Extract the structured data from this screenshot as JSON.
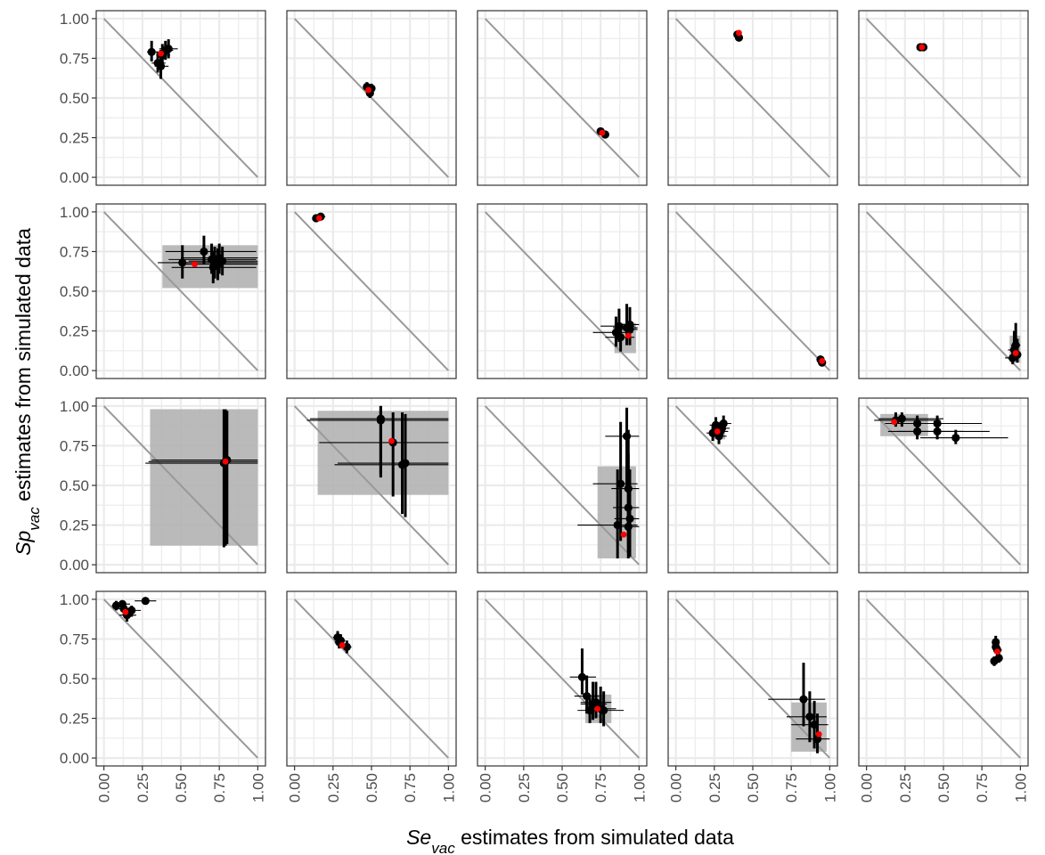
{
  "chart_data": {
    "type": "scatter",
    "layout": {
      "rows": 4,
      "cols": 5
    },
    "xlabel": {
      "symbol": "Se",
      "subscript": "vac",
      "text": " estimates from simulated data"
    },
    "ylabel": {
      "symbol": "Sp",
      "subscript": "vac",
      "text": " estimates from simulated data"
    },
    "xlim": [
      0,
      1
    ],
    "ylim": [
      0,
      1
    ],
    "x_ticks": [
      "0.00",
      "0.25",
      "0.50",
      "0.75",
      "1.00"
    ],
    "y_ticks": [
      "0.00",
      "0.25",
      "0.50",
      "0.75",
      "1.00"
    ],
    "reference_line": {
      "from": [
        0,
        1
      ],
      "to": [
        1,
        0
      ],
      "color": "#999999"
    },
    "colors": {
      "point": "#000000",
      "true_value": "#ff0000",
      "ci_rect": "#b3b3b3",
      "grid": "#ebebeb",
      "panel_border": "#333333"
    },
    "panels": [
      {
        "truth": [
          0.37,
          0.78
        ],
        "rect": null,
        "points": [
          [
            0.31,
            0.79,
            0.28,
            0.4,
            0.73,
            0.86
          ],
          [
            0.35,
            0.72,
            0.31,
            0.4,
            0.66,
            0.79
          ],
          [
            0.37,
            0.7,
            0.33,
            0.42,
            0.62,
            0.78
          ],
          [
            0.4,
            0.8,
            0.36,
            0.45,
            0.74,
            0.86
          ],
          [
            0.42,
            0.81,
            0.36,
            0.48,
            0.75,
            0.87
          ],
          [
            0.38,
            0.77,
            0.34,
            0.43,
            0.71,
            0.84
          ]
        ]
      },
      {
        "truth": [
          0.48,
          0.55
        ],
        "rect": null,
        "points": [
          [
            0.47,
            0.57,
            0.45,
            0.5,
            0.54,
            0.6
          ],
          [
            0.49,
            0.53,
            0.47,
            0.51,
            0.5,
            0.56
          ],
          [
            0.5,
            0.56,
            0.48,
            0.52,
            0.53,
            0.59
          ]
        ]
      },
      {
        "truth": [
          0.76,
          0.28
        ],
        "rect": null,
        "points": [
          [
            0.75,
            0.29,
            0.73,
            0.77,
            0.27,
            0.31
          ],
          [
            0.78,
            0.27,
            0.76,
            0.8,
            0.25,
            0.29
          ]
        ]
      },
      {
        "truth": [
          0.41,
          0.91
        ],
        "rect": null,
        "points": [
          [
            0.4,
            0.9,
            0.39,
            0.42,
            0.88,
            0.92
          ],
          [
            0.41,
            0.88,
            0.4,
            0.42,
            0.86,
            0.9
          ]
        ]
      },
      {
        "truth": [
          0.36,
          0.82
        ],
        "rect": null,
        "points": [
          [
            0.35,
            0.82,
            0.34,
            0.37,
            0.81,
            0.83
          ],
          [
            0.37,
            0.82,
            0.36,
            0.38,
            0.81,
            0.83
          ]
        ]
      },
      {
        "truth": [
          0.59,
          0.67
        ],
        "rect": [
          0.38,
          0.52,
          1.0,
          0.79
        ],
        "points": [
          [
            0.51,
            0.68,
            0.35,
            0.98,
            0.58,
            0.79
          ],
          [
            0.65,
            0.75,
            0.4,
            0.99,
            0.67,
            0.85
          ],
          [
            0.7,
            0.7,
            0.42,
            0.99,
            0.61,
            0.8
          ],
          [
            0.72,
            0.68,
            0.45,
            1.0,
            0.58,
            0.78
          ],
          [
            0.71,
            0.65,
            0.44,
            0.99,
            0.55,
            0.75
          ],
          [
            0.75,
            0.71,
            0.5,
            1.0,
            0.61,
            0.8
          ],
          [
            0.77,
            0.69,
            0.55,
            1.0,
            0.6,
            0.78
          ],
          [
            0.74,
            0.67,
            0.52,
            1.0,
            0.57,
            0.77
          ]
        ]
      },
      {
        "truth": [
          0.16,
          0.96
        ],
        "rect": null,
        "points": [
          [
            0.14,
            0.96,
            0.12,
            0.18,
            0.94,
            0.98
          ],
          [
            0.17,
            0.97,
            0.15,
            0.2,
            0.95,
            0.99
          ]
        ]
      },
      {
        "truth": [
          0.93,
          0.22
        ],
        "rect": [
          0.84,
          0.11,
          0.98,
          0.3
        ],
        "points": [
          [
            0.85,
            0.24,
            0.7,
            0.96,
            0.15,
            0.34
          ],
          [
            0.87,
            0.28,
            0.75,
            0.97,
            0.18,
            0.39
          ],
          [
            0.88,
            0.21,
            0.78,
            0.97,
            0.12,
            0.3
          ],
          [
            0.92,
            0.27,
            0.83,
            0.99,
            0.16,
            0.42
          ],
          [
            0.94,
            0.26,
            0.85,
            0.99,
            0.16,
            0.37
          ],
          [
            0.94,
            0.29,
            0.86,
            1.0,
            0.18,
            0.4
          ]
        ]
      },
      {
        "truth": [
          0.95,
          0.06
        ],
        "rect": null,
        "points": [
          [
            0.94,
            0.07,
            0.92,
            0.96,
            0.05,
            0.09
          ],
          [
            0.95,
            0.05,
            0.93,
            0.97,
            0.03,
            0.07
          ]
        ]
      },
      {
        "truth": [
          0.97,
          0.11
        ],
        "rect": [
          0.93,
          0.05,
          1.0,
          0.22
        ],
        "points": [
          [
            0.95,
            0.08,
            0.9,
            0.99,
            0.04,
            0.16
          ],
          [
            0.96,
            0.13,
            0.92,
            0.99,
            0.07,
            0.25
          ],
          [
            0.97,
            0.16,
            0.94,
            1.0,
            0.09,
            0.3
          ],
          [
            0.98,
            0.1,
            0.95,
            1.0,
            0.05,
            0.2
          ]
        ]
      },
      {
        "truth": [
          0.79,
          0.65
        ],
        "rect": [
          0.3,
          0.12,
          1.0,
          0.98
        ],
        "points": [
          [
            0.79,
            0.65,
            0.29,
            1.0,
            0.12,
            0.98
          ],
          [
            0.78,
            0.64,
            0.27,
            1.0,
            0.11,
            0.98
          ],
          [
            0.8,
            0.66,
            0.31,
            1.0,
            0.13,
            0.97
          ]
        ]
      },
      {
        "truth": [
          0.63,
          0.78
        ],
        "rect": [
          0.15,
          0.44,
          1.0,
          0.97
        ],
        "points": [
          [
            0.56,
            0.91,
            0.08,
            1.0,
            0.55,
            1.0
          ],
          [
            0.64,
            0.77,
            0.16,
            1.0,
            0.43,
            0.96
          ],
          [
            0.7,
            0.63,
            0.26,
            1.0,
            0.32,
            0.96
          ],
          [
            0.72,
            0.64,
            0.28,
            1.0,
            0.3,
            0.95
          ],
          [
            0.56,
            0.92,
            0.1,
            1.0,
            0.57,
            1.0
          ]
        ]
      },
      {
        "truth": [
          0.9,
          0.19
        ],
        "rect": [
          0.73,
          0.04,
          0.98,
          0.62
        ],
        "points": [
          [
            0.86,
            0.25,
            0.6,
            0.99,
            0.04,
            0.6
          ],
          [
            0.88,
            0.51,
            0.7,
            0.99,
            0.15,
            0.9
          ],
          [
            0.92,
            0.81,
            0.78,
            1.0,
            0.5,
            0.99
          ],
          [
            0.93,
            0.48,
            0.82,
            1.0,
            0.16,
            0.85
          ],
          [
            0.93,
            0.36,
            0.83,
            1.0,
            0.08,
            0.7
          ],
          [
            0.94,
            0.29,
            0.84,
            1.0,
            0.05,
            0.6
          ],
          [
            0.93,
            0.24,
            0.84,
            1.0,
            0.04,
            0.55
          ]
        ]
      },
      {
        "truth": [
          0.27,
          0.84
        ],
        "rect": [
          0.24,
          0.79,
          0.32,
          0.9
        ],
        "points": [
          [
            0.24,
            0.83,
            0.2,
            0.28,
            0.78,
            0.88
          ],
          [
            0.26,
            0.88,
            0.22,
            0.3,
            0.83,
            0.93
          ],
          [
            0.28,
            0.81,
            0.24,
            0.33,
            0.76,
            0.87
          ],
          [
            0.3,
            0.86,
            0.26,
            0.35,
            0.81,
            0.91
          ],
          [
            0.31,
            0.89,
            0.26,
            0.36,
            0.84,
            0.94
          ],
          [
            0.29,
            0.84,
            0.25,
            0.34,
            0.79,
            0.9
          ]
        ]
      },
      {
        "truth": [
          0.18,
          0.9
        ],
        "rect": [
          0.09,
          0.81,
          0.4,
          0.95
        ],
        "points": [
          [
            0.19,
            0.91,
            0.05,
            0.48,
            0.87,
            0.96
          ],
          [
            0.23,
            0.92,
            0.08,
            0.5,
            0.87,
            0.96
          ],
          [
            0.33,
            0.89,
            0.12,
            0.6,
            0.84,
            0.94
          ],
          [
            0.33,
            0.84,
            0.14,
            0.63,
            0.79,
            0.89
          ],
          [
            0.46,
            0.89,
            0.22,
            0.75,
            0.84,
            0.94
          ],
          [
            0.46,
            0.84,
            0.2,
            0.8,
            0.79,
            0.89
          ],
          [
            0.58,
            0.8,
            0.35,
            0.92,
            0.76,
            0.85
          ]
        ]
      },
      {
        "truth": [
          0.14,
          0.92
        ],
        "rect": null,
        "points": [
          [
            0.08,
            0.96,
            0.05,
            0.12,
            0.93,
            0.99
          ],
          [
            0.12,
            0.97,
            0.08,
            0.17,
            0.94,
            0.99
          ],
          [
            0.15,
            0.9,
            0.1,
            0.21,
            0.86,
            0.94
          ],
          [
            0.18,
            0.93,
            0.12,
            0.24,
            0.89,
            0.96
          ],
          [
            0.27,
            0.99,
            0.2,
            0.34,
            0.97,
            1.0
          ],
          [
            0.13,
            0.94,
            0.09,
            0.18,
            0.9,
            0.97
          ]
        ]
      },
      {
        "truth": [
          0.31,
          0.71
        ],
        "rect": null,
        "points": [
          [
            0.28,
            0.76,
            0.25,
            0.31,
            0.72,
            0.8
          ],
          [
            0.29,
            0.73,
            0.26,
            0.32,
            0.69,
            0.77
          ],
          [
            0.34,
            0.7,
            0.31,
            0.37,
            0.66,
            0.74
          ],
          [
            0.3,
            0.74,
            0.27,
            0.33,
            0.7,
            0.78
          ]
        ]
      },
      {
        "truth": [
          0.73,
          0.31
        ],
        "rect": [
          0.65,
          0.22,
          0.82,
          0.4
        ],
        "points": [
          [
            0.63,
            0.51,
            0.55,
            0.72,
            0.4,
            0.69
          ],
          [
            0.66,
            0.39,
            0.58,
            0.74,
            0.28,
            0.52
          ],
          [
            0.7,
            0.34,
            0.62,
            0.79,
            0.24,
            0.48
          ],
          [
            0.72,
            0.35,
            0.62,
            0.82,
            0.25,
            0.48
          ],
          [
            0.75,
            0.31,
            0.65,
            0.85,
            0.22,
            0.45
          ],
          [
            0.77,
            0.3,
            0.68,
            0.9,
            0.2,
            0.42
          ],
          [
            0.68,
            0.3,
            0.6,
            0.76,
            0.22,
            0.38
          ]
        ]
      },
      {
        "truth": [
          0.93,
          0.15
        ],
        "rect": [
          0.75,
          0.04,
          0.98,
          0.35
        ],
        "points": [
          [
            0.83,
            0.37,
            0.6,
            0.97,
            0.2,
            0.6
          ],
          [
            0.87,
            0.26,
            0.72,
            0.98,
            0.1,
            0.42
          ],
          [
            0.9,
            0.21,
            0.75,
            0.99,
            0.06,
            0.36
          ],
          [
            0.92,
            0.12,
            0.78,
            1.0,
            0.03,
            0.28
          ]
        ]
      },
      {
        "truth": [
          0.85,
          0.67
        ],
        "rect": null,
        "points": [
          [
            0.83,
            0.61,
            0.81,
            0.86,
            0.58,
            0.64
          ],
          [
            0.84,
            0.7,
            0.82,
            0.87,
            0.66,
            0.74
          ],
          [
            0.86,
            0.63,
            0.84,
            0.88,
            0.6,
            0.66
          ],
          [
            0.85,
            0.68,
            0.83,
            0.88,
            0.64,
            0.72
          ],
          [
            0.84,
            0.73,
            0.82,
            0.86,
            0.7,
            0.77
          ]
        ]
      }
    ]
  }
}
